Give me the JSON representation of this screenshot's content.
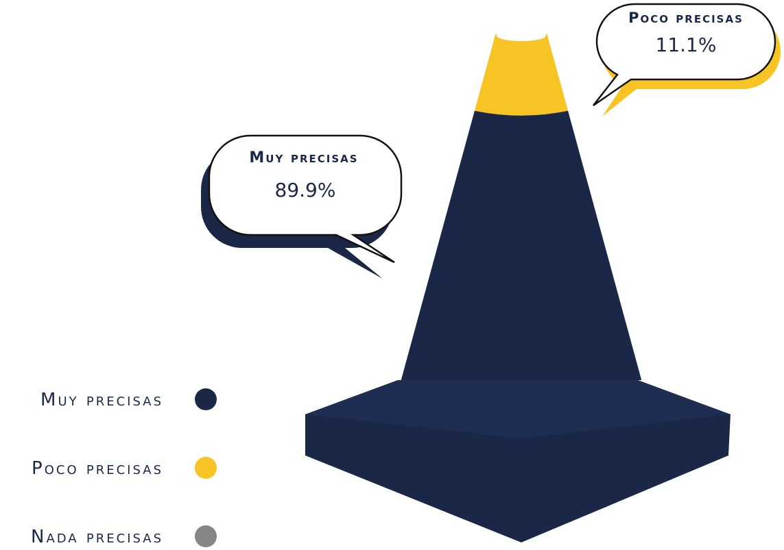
{
  "chart_data": {
    "type": "cone",
    "categories": [
      "Muy precisas",
      "Poco precisas",
      "Nada precisas"
    ],
    "values": [
      89.9,
      11.1,
      0
    ],
    "value_labels": [
      "89.9%",
      "11.1%",
      null
    ],
    "colors": [
      "#1a2747",
      "#f7c325",
      "#858585"
    ]
  }
}
